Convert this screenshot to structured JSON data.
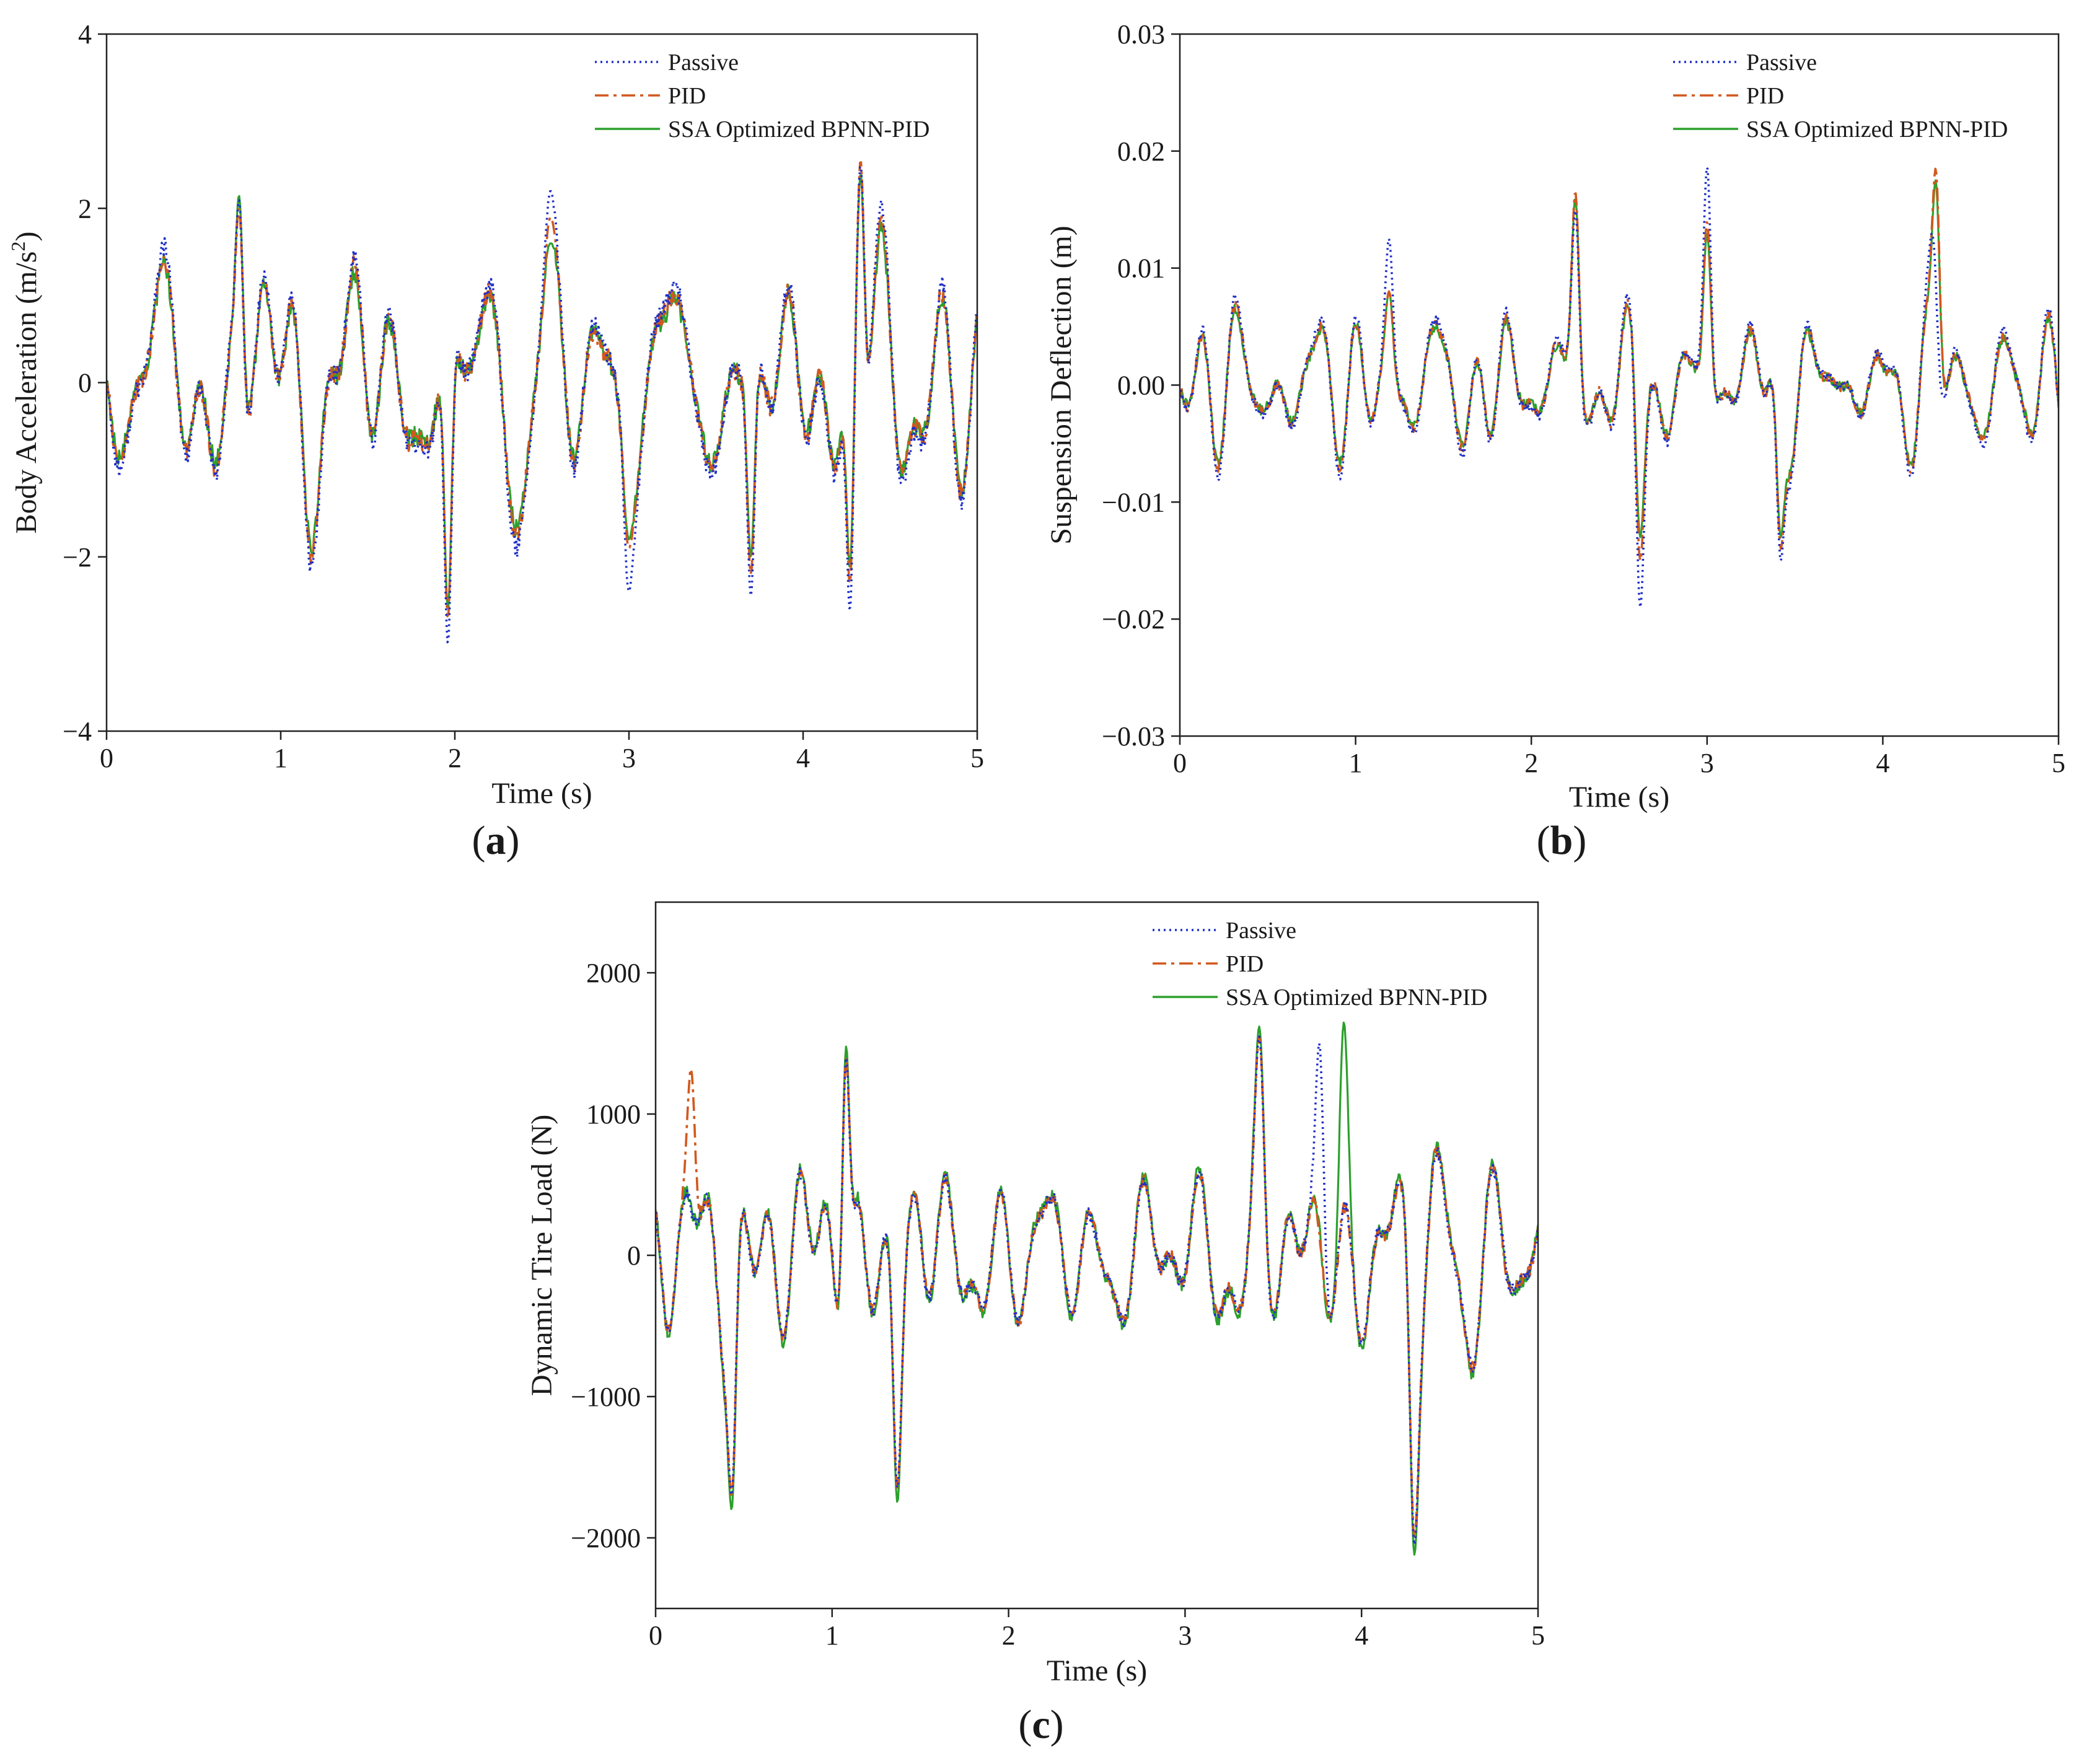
{
  "chart_data": [
    {
      "type": "line",
      "panel": "a",
      "panel_label": "(a)",
      "title": "",
      "xlabel": "Time (s)",
      "ylabel_main": "Body Acceleration (m/s",
      "ylabel_sup": "2",
      "ylabel_end": ")",
      "xlim": [
        0,
        5
      ],
      "ylim": [
        -4,
        4
      ],
      "xticks": [
        0,
        1,
        2,
        3,
        4,
        5
      ],
      "yticks": [
        -4,
        -2,
        0,
        2,
        4
      ],
      "ytick_labels": [
        "−4",
        "−2",
        "0",
        "2",
        "4"
      ],
      "grid": false,
      "legend_position": "top-right",
      "amplitude": 2.0,
      "seed": 11,
      "series": [
        {
          "name": "Passive",
          "color": "#1f2fc8",
          "dash": "dotted",
          "gain": 1.08,
          "peaks": [
            [
              0.76,
              2.1
            ],
            [
              1.96,
              -3.0
            ],
            [
              2.55,
              2.2
            ],
            [
              3.0,
              -2.4
            ],
            [
              3.7,
              -2.45
            ],
            [
              4.27,
              -2.7
            ],
            [
              4.33,
              2.5
            ]
          ]
        },
        {
          "name": "PID",
          "color": "#d2581e",
          "dash": "dashdot",
          "gain": 1.0,
          "peaks": [
            [
              0.76,
              2.0
            ],
            [
              1.96,
              -2.7
            ],
            [
              2.55,
              1.9
            ],
            [
              3.0,
              -1.9
            ],
            [
              3.7,
              -2.2
            ],
            [
              4.27,
              -2.4
            ],
            [
              4.33,
              2.55
            ]
          ]
        },
        {
          "name": "SSA Optimized BPNN-PID",
          "color": "#2ca02c",
          "dash": "solid",
          "gain": 0.95,
          "peaks": [
            [
              0.76,
              2.15
            ],
            [
              1.96,
              -2.6
            ],
            [
              2.55,
              1.6
            ],
            [
              3.0,
              -1.8
            ],
            [
              3.7,
              -2.0
            ],
            [
              4.27,
              -2.2
            ],
            [
              4.33,
              2.4
            ]
          ]
        }
      ]
    },
    {
      "type": "line",
      "panel": "b",
      "panel_label": "(b)",
      "title": "",
      "xlabel": "Time (s)",
      "ylabel_main": "Suspension Deflection (m)",
      "ylabel_sup": "",
      "ylabel_end": "",
      "xlim": [
        0,
        5
      ],
      "ylim": [
        -0.03,
        0.03
      ],
      "xticks": [
        0,
        1,
        2,
        3,
        4,
        5
      ],
      "yticks": [
        -0.03,
        -0.02,
        -0.01,
        0.0,
        0.01,
        0.02,
        0.03
      ],
      "ytick_labels": [
        "−0.03",
        "−0.02",
        "−0.01",
        "0.00",
        "0.01",
        "0.02",
        "0.03"
      ],
      "grid": false,
      "legend_position": "top-right",
      "amplitude": 0.0075,
      "seed": 23,
      "series": [
        {
          "name": "Passive",
          "color": "#1f2fc8",
          "dash": "dotted",
          "gain": 1.1,
          "peaks": [
            [
              1.19,
              0.0125
            ],
            [
              2.25,
              0.015
            ],
            [
              2.62,
              -0.019
            ],
            [
              3.0,
              0.0187
            ],
            [
              3.42,
              -0.015
            ],
            [
              4.28,
              0.013
            ]
          ]
        },
        {
          "name": "PID",
          "color": "#d2581e",
          "dash": "dashdot",
          "gain": 1.0,
          "peaks": [
            [
              1.19,
              0.008
            ],
            [
              2.25,
              0.0165
            ],
            [
              2.62,
              -0.015
            ],
            [
              3.0,
              0.014
            ],
            [
              3.42,
              -0.014
            ],
            [
              4.3,
              0.0185
            ]
          ]
        },
        {
          "name": "SSA Optimized BPNN-PID",
          "color": "#2ca02c",
          "dash": "solid",
          "gain": 0.95,
          "peaks": [
            [
              1.19,
              0.008
            ],
            [
              2.25,
              0.016
            ],
            [
              2.62,
              -0.013
            ],
            [
              3.0,
              0.013
            ],
            [
              3.42,
              -0.013
            ],
            [
              4.3,
              0.0175
            ]
          ]
        }
      ]
    },
    {
      "type": "line",
      "panel": "c",
      "panel_label": "(c)",
      "title": "",
      "xlabel": "Time (s)",
      "ylabel_main": "Dynamic Tire Load (N)",
      "ylabel_sup": "",
      "ylabel_end": "",
      "xlim": [
        0,
        5
      ],
      "ylim": [
        -2500,
        2500
      ],
      "xticks": [
        0,
        1,
        2,
        3,
        4,
        5
      ],
      "yticks": [
        -2000,
        -1000,
        0,
        1000,
        2000
      ],
      "ytick_labels": [
        "−2000",
        "−1000",
        "0",
        "1000",
        "2000"
      ],
      "grid": false,
      "legend_position": "top-right",
      "amplitude": 800,
      "seed": 37,
      "series": [
        {
          "name": "Passive",
          "color": "#1f2fc8",
          "dash": "dotted",
          "gain": 1.0,
          "peaks": [
            [
              0.43,
              -1700
            ],
            [
              1.08,
              1400
            ],
            [
              1.37,
              -1650
            ],
            [
              3.42,
              1550
            ],
            [
              3.76,
              1500
            ],
            [
              4.3,
              -2050
            ]
          ]
        },
        {
          "name": "PID",
          "color": "#d2581e",
          "dash": "dashdot",
          "gain": 1.0,
          "peaks": [
            [
              0.2,
              1320
            ],
            [
              0.43,
              -1700
            ],
            [
              1.08,
              1400
            ],
            [
              1.37,
              -1650
            ],
            [
              3.42,
              1550
            ],
            [
              4.3,
              -2000
            ]
          ]
        },
        {
          "name": "SSA Optimized BPNN-PID",
          "color": "#2ca02c",
          "dash": "solid",
          "gain": 1.05,
          "peaks": [
            [
              0.43,
              -1800
            ],
            [
              1.08,
              1480
            ],
            [
              1.37,
              -1750
            ],
            [
              3.42,
              1620
            ],
            [
              3.9,
              1650
            ],
            [
              4.3,
              -2120
            ]
          ]
        }
      ]
    }
  ]
}
